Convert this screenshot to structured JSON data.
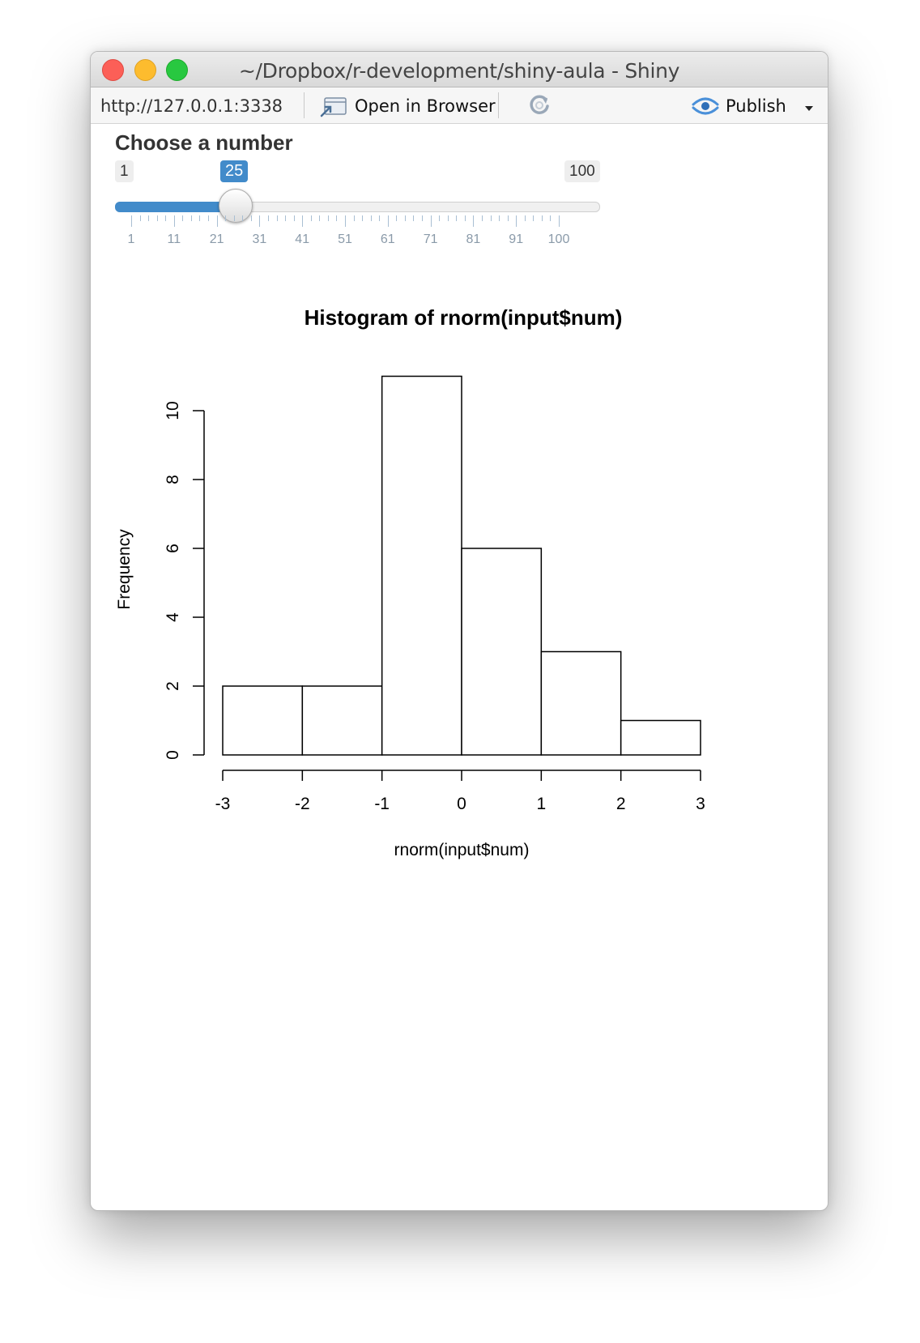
{
  "window": {
    "title": "~/Dropbox/r-development/shiny-aula - Shiny"
  },
  "toolbar": {
    "url": "http://127.0.0.1:3338",
    "open_in_browser_label": "Open in Browser",
    "publish_label": "Publish"
  },
  "slider": {
    "label": "Choose a number",
    "min": 1,
    "max": 100,
    "value": 25,
    "min_label": "1",
    "max_label": "100",
    "value_label": "25",
    "tick_labels": [
      "1",
      "11",
      "21",
      "31",
      "41",
      "51",
      "61",
      "71",
      "81",
      "91",
      "100"
    ],
    "accent_color": "#428bca"
  },
  "chart_data": {
    "type": "bar",
    "title": "Histogram of rnorm(input$num)",
    "xlabel": "rnorm(input$num)",
    "ylabel": "Frequency",
    "bin_edges": [
      -3,
      -2,
      -1,
      0,
      1,
      2,
      3
    ],
    "values": [
      2,
      2,
      11,
      6,
      3,
      1
    ],
    "xlim": [
      -3,
      3
    ],
    "ylim": [
      0,
      11
    ],
    "x_ticks": [
      "-3",
      "-2",
      "-1",
      "0",
      "1",
      "2",
      "3"
    ],
    "y_ticks": [
      "0",
      "2",
      "4",
      "6",
      "8",
      "10"
    ],
    "grid": false,
    "legend": "none"
  }
}
